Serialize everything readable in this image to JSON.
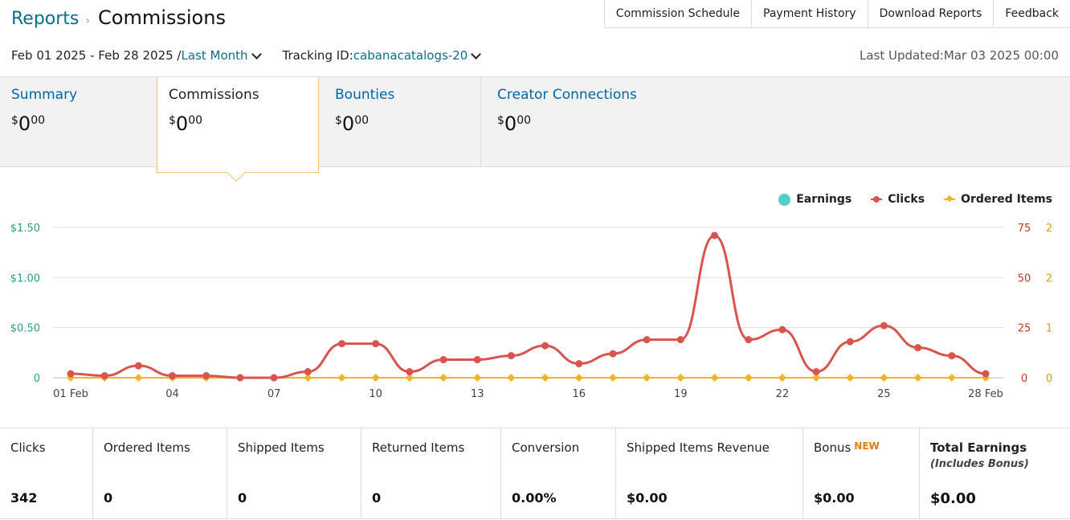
{
  "breadcrumb": {
    "parent": "Reports",
    "separator": "›",
    "current": "Commissions"
  },
  "top_tabs": [
    "Commission Schedule",
    "Payment History",
    "Download Reports",
    "Feedback"
  ],
  "filters": {
    "date_range": "Feb 01 2025 - Feb 28 2025 /",
    "period": "Last Month",
    "tracking_label": "Tracking ID:",
    "tracking_id": "cabanacatalogs-20"
  },
  "last_updated": "Last Updated:Mar 03 2025 00:00",
  "summary_tabs": [
    {
      "title": "Summary",
      "currency": "$",
      "whole": "0",
      "cents": "00"
    },
    {
      "title": "Commissions",
      "currency": "$",
      "whole": "0",
      "cents": "00"
    },
    {
      "title": "Bounties",
      "currency": "$",
      "whole": "0",
      "cents": "00"
    },
    {
      "title": "Creator Connections",
      "currency": "$",
      "whole": "0",
      "cents": "00"
    }
  ],
  "legend": {
    "earnings": "Earnings",
    "clicks": "Clicks",
    "ordered": "Ordered Items"
  },
  "colors": {
    "earnings": "#4fd1c5",
    "clicks": "#d9534f",
    "ordered": "#f0b429",
    "link": "#0066a6",
    "accent_border": "#f0c36d"
  },
  "chart_data": {
    "type": "line",
    "x": [
      "01 Feb",
      "02",
      "03",
      "04",
      "05",
      "06",
      "07",
      "08",
      "09",
      "10",
      "11",
      "12",
      "13",
      "14",
      "15",
      "16",
      "17",
      "18",
      "19",
      "20",
      "21",
      "22",
      "23",
      "24",
      "25",
      "26",
      "27",
      "28 Feb"
    ],
    "x_tick_labels": [
      "01 Feb",
      "04",
      "07",
      "10",
      "13",
      "16",
      "19",
      "22",
      "25",
      "28 Feb"
    ],
    "y_left_ticks": [
      "0",
      "$0.50",
      "$1.00",
      "$1.50"
    ],
    "y_right_clicks_ticks": [
      "0",
      "25",
      "50",
      "75"
    ],
    "y_right_ordered_ticks": [
      "0",
      "1",
      "2"
    ],
    "ylim_earnings": [
      0,
      1.5
    ],
    "ylim_clicks": [
      0,
      75
    ],
    "ylim_ordered": [
      0,
      2
    ],
    "series": [
      {
        "name": "Earnings",
        "values": [
          0,
          0,
          0,
          0,
          0,
          0,
          0,
          0,
          0,
          0,
          0,
          0,
          0,
          0,
          0,
          0,
          0,
          0,
          0,
          0,
          0,
          0,
          0,
          0,
          0,
          0,
          0,
          0
        ]
      },
      {
        "name": "Clicks",
        "values": [
          2,
          1,
          6,
          1,
          1,
          0,
          0,
          3,
          17,
          17,
          3,
          9,
          9,
          11,
          16,
          7,
          12,
          19,
          19,
          71,
          19,
          24,
          3,
          18,
          26,
          15,
          11,
          2
        ]
      },
      {
        "name": "Ordered Items",
        "values": [
          0,
          0,
          0,
          0,
          0,
          0,
          0,
          0,
          0,
          0,
          0,
          0,
          0,
          0,
          0,
          0,
          0,
          0,
          0,
          0,
          0,
          0,
          0,
          0,
          0,
          0,
          0,
          0
        ]
      }
    ]
  },
  "metrics": [
    {
      "label": "Clicks",
      "value": "342"
    },
    {
      "label": "Ordered Items",
      "value": "0"
    },
    {
      "label": "Shipped Items",
      "value": "0"
    },
    {
      "label": "Returned Items",
      "value": "0"
    },
    {
      "label": "Conversion",
      "value": "0.00%"
    },
    {
      "label": "Shipped Items Revenue",
      "value": "$0.00"
    },
    {
      "label": "Bonus",
      "badge": "NEW",
      "value": "$0.00"
    },
    {
      "label": "Total Earnings",
      "sub": "(Includes Bonus)",
      "value": "$0.00"
    }
  ]
}
